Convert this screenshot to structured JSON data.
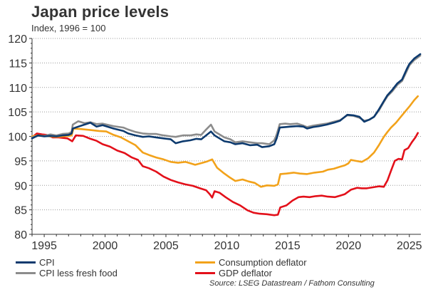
{
  "title": "Japan price levels",
  "subtitle": "Index, 1996 = 100",
  "source": "Source: LSEG Datastream / Fathom Consulting",
  "chart_data": {
    "type": "line",
    "title": "Japan price levels",
    "subtitle": "Index, 1996 = 100",
    "xlabel": "",
    "ylabel": "Index, 1996 = 100",
    "xlim": [
      1994.0,
      2025.95
    ],
    "ylim": [
      80,
      120
    ],
    "x_ticks": [
      1995,
      2000,
      2005,
      2010,
      2015,
      2020,
      2025
    ],
    "x_tick_labels": [
      "1995",
      "2000",
      "2005",
      "2010",
      "2015",
      "2020",
      "2025"
    ],
    "y_ticks": [
      80,
      85,
      90,
      95,
      100,
      105,
      110,
      115,
      120
    ],
    "y_tick_labels": [
      "80",
      "85",
      "90",
      "95",
      "100",
      "105",
      "110",
      "115",
      "120"
    ],
    "grid": "horizontal-dotted",
    "legend_position": "bottom",
    "series": [
      {
        "name": "CPI",
        "color": "#0d3a6e",
        "x": [
          1994.0,
          1994.5,
          1995.0,
          1995.5,
          1996.0,
          1996.5,
          1997.0,
          1997.25,
          1997.35,
          1997.8,
          1998.3,
          1998.8,
          1999.3,
          1999.8,
          2000.7,
          2001.5,
          2001.9,
          2002.5,
          2003.1,
          2003.6,
          2004.2,
          2004.8,
          2005.4,
          2005.8,
          2006.4,
          2007.0,
          2007.5,
          2007.9,
          2008.3,
          2008.7,
          2009.0,
          2009.4,
          2009.8,
          2010.3,
          2010.7,
          2011.3,
          2011.9,
          2012.5,
          2012.9,
          2013.5,
          2013.9,
          2014.1,
          2014.35,
          2014.8,
          2015.2,
          2015.8,
          2016.3,
          2016.6,
          2017.1,
          2017.6,
          2018.2,
          2018.8,
          2019.3,
          2019.9,
          2020.4,
          2020.9,
          2021.3,
          2021.7,
          2022.1,
          2022.5,
          2022.9,
          2023.2,
          2023.6,
          2024.0,
          2024.4,
          2024.8,
          2025.0,
          2025.4,
          2025.9
        ],
        "values": [
          99.6,
          100.2,
          100.0,
          100.1,
          100.0,
          100.2,
          100.3,
          100.6,
          101.6,
          102.0,
          102.4,
          102.8,
          102.0,
          102.3,
          101.6,
          101.1,
          100.6,
          100.2,
          99.9,
          100.0,
          99.8,
          99.6,
          99.4,
          98.6,
          99.0,
          99.2,
          99.5,
          99.4,
          100.2,
          101.0,
          100.2,
          99.6,
          99.0,
          98.8,
          98.4,
          98.6,
          98.2,
          98.3,
          97.8,
          98.0,
          98.4,
          99.6,
          101.8,
          101.9,
          102.0,
          102.1,
          102.0,
          101.6,
          101.9,
          102.1,
          102.4,
          102.8,
          103.2,
          104.4,
          104.3,
          104.0,
          103.0,
          103.4,
          104.0,
          105.5,
          107.2,
          108.4,
          109.5,
          110.8,
          111.6,
          113.8,
          114.8,
          115.9,
          116.8
        ]
      },
      {
        "name": "CPI less fresh food",
        "color": "#8c8c8c",
        "x": [
          1994.0,
          1994.5,
          1995.0,
          1995.5,
          1996.0,
          1996.5,
          1997.0,
          1997.25,
          1997.35,
          1997.8,
          1998.3,
          1998.8,
          1999.3,
          1999.8,
          2000.7,
          2001.5,
          2001.9,
          2002.5,
          2003.1,
          2003.6,
          2004.2,
          2004.8,
          2005.4,
          2005.8,
          2006.4,
          2007.0,
          2007.5,
          2007.9,
          2008.3,
          2008.7,
          2009.0,
          2009.4,
          2009.8,
          2010.3,
          2010.7,
          2011.3,
          2011.9,
          2012.5,
          2012.9,
          2013.5,
          2013.9,
          2014.1,
          2014.35,
          2014.8,
          2015.2,
          2015.8,
          2016.3,
          2016.6,
          2017.1,
          2017.6,
          2018.2,
          2018.8,
          2019.3,
          2019.9,
          2020.4,
          2020.9,
          2021.3,
          2021.7,
          2022.1,
          2022.5,
          2022.9,
          2023.2,
          2023.6,
          2024.0,
          2024.4,
          2024.8,
          2025.0,
          2025.4,
          2025.9
        ],
        "values": [
          99.8,
          100.1,
          100.1,
          100.4,
          100.2,
          100.5,
          100.6,
          100.9,
          102.4,
          103.1,
          102.7,
          102.9,
          102.5,
          102.6,
          102.1,
          101.8,
          101.4,
          100.9,
          100.6,
          100.5,
          100.5,
          100.2,
          100.0,
          99.9,
          100.2,
          100.2,
          100.4,
          100.3,
          101.4,
          102.4,
          101.0,
          100.4,
          99.8,
          99.4,
          98.8,
          99.0,
          98.8,
          98.6,
          98.6,
          98.4,
          99.2,
          100.4,
          102.5,
          102.6,
          102.5,
          102.6,
          102.2,
          101.9,
          102.2,
          102.4,
          102.6,
          103.0,
          103.3,
          104.3,
          104.2,
          103.8,
          103.2,
          103.4,
          104.0,
          105.3,
          107.0,
          108.2,
          109.2,
          110.5,
          111.3,
          113.4,
          114.5,
          115.6,
          116.5
        ]
      },
      {
        "name": "Consumption deflator",
        "color": "#f2a21a",
        "x": [
          1994.0,
          1994.5,
          1995.0,
          1995.5,
          1996.0,
          1996.5,
          1997.0,
          1997.25,
          1997.4,
          1998.0,
          1998.8,
          1999.5,
          2000.1,
          2000.7,
          2001.3,
          2001.9,
          2002.5,
          2003.1,
          2003.6,
          2004.2,
          2004.8,
          2005.4,
          2006.0,
          2006.6,
          2007.0,
          2007.4,
          2008.0,
          2008.4,
          2008.8,
          2009.2,
          2009.7,
          2010.2,
          2010.7,
          2011.3,
          2011.8,
          2012.3,
          2012.8,
          2013.3,
          2013.9,
          2014.2,
          2014.4,
          2014.9,
          2015.5,
          2016.0,
          2016.6,
          2017.2,
          2017.9,
          2018.3,
          2018.8,
          2019.3,
          2019.7,
          2020.0,
          2020.2,
          2020.6,
          2021.1,
          2021.6,
          2022.1,
          2022.5,
          2022.9,
          2023.2,
          2023.5,
          2023.9,
          2024.2,
          2024.6,
          2025.0,
          2025.4,
          2025.7
        ],
        "values": [
          100.0,
          100.2,
          100.1,
          100.0,
          99.9,
          100.0,
          100.1,
          100.2,
          101.6,
          101.5,
          101.3,
          101.1,
          101.0,
          100.3,
          99.8,
          99.0,
          98.2,
          96.7,
          96.2,
          95.7,
          95.3,
          94.8,
          94.6,
          94.8,
          94.5,
          94.2,
          94.6,
          94.9,
          95.3,
          93.6,
          92.6,
          91.7,
          90.9,
          91.2,
          90.8,
          90.5,
          89.7,
          90.0,
          89.9,
          90.2,
          92.3,
          92.4,
          92.6,
          92.4,
          92.3,
          92.6,
          92.8,
          93.2,
          93.4,
          93.8,
          94.1,
          94.5,
          95.2,
          95.0,
          94.8,
          95.5,
          96.7,
          98.2,
          99.9,
          100.9,
          101.8,
          102.8,
          103.7,
          104.9,
          106.1,
          107.4,
          108.2
        ]
      },
      {
        "name": "GDP deflator",
        "color": "#e3101a",
        "x": [
          1994.0,
          1994.2,
          1994.4,
          1994.8,
          1995.2,
          1995.7,
          1996.2,
          1996.9,
          1997.3,
          1997.6,
          1998.2,
          1998.8,
          1999.3,
          1999.8,
          2000.4,
          2001.0,
          2001.6,
          2002.2,
          2002.7,
          2003.1,
          2003.6,
          2004.2,
          2004.8,
          2005.4,
          2006.0,
          2006.6,
          2007.2,
          2007.8,
          2008.3,
          2008.6,
          2008.8,
          2009.0,
          2009.4,
          2009.9,
          2010.5,
          2011.1,
          2011.7,
          2012.2,
          2012.7,
          2013.3,
          2013.9,
          2014.2,
          2014.4,
          2014.9,
          2015.4,
          2015.9,
          2016.3,
          2016.8,
          2017.3,
          2017.8,
          2018.3,
          2018.9,
          2019.3,
          2019.7,
          2020.2,
          2020.7,
          2021.1,
          2021.5,
          2022.0,
          2022.5,
          2022.9,
          2023.2,
          2023.5,
          2023.8,
          2024.1,
          2024.4,
          2024.6,
          2024.9,
          2025.2,
          2025.5,
          2025.7
        ],
        "values": [
          99.8,
          100.2,
          100.6,
          100.4,
          100.3,
          99.8,
          99.8,
          99.6,
          99.0,
          100.2,
          100.1,
          99.5,
          99.1,
          98.4,
          97.9,
          97.1,
          96.6,
          95.7,
          95.2,
          93.9,
          93.5,
          92.8,
          91.8,
          91.1,
          90.6,
          90.2,
          89.9,
          89.4,
          89.0,
          88.2,
          87.5,
          88.8,
          88.5,
          87.6,
          86.6,
          85.9,
          84.9,
          84.4,
          84.2,
          84.1,
          83.9,
          84.0,
          85.5,
          85.9,
          86.9,
          87.6,
          87.7,
          87.6,
          87.8,
          87.9,
          87.7,
          87.6,
          87.9,
          88.2,
          89.1,
          89.5,
          89.4,
          89.4,
          89.6,
          89.8,
          89.7,
          91.0,
          93.0,
          95.0,
          95.4,
          95.3,
          97.2,
          97.6,
          98.8,
          99.8,
          100.7
        ]
      }
    ]
  }
}
